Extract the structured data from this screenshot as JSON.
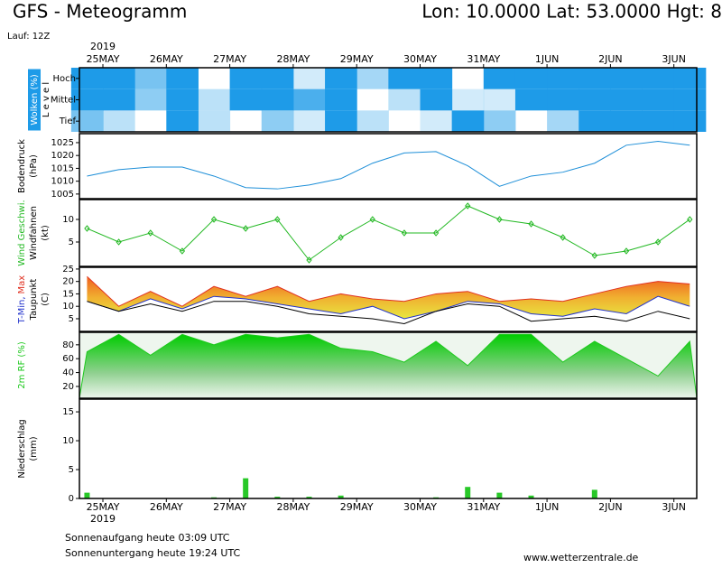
{
  "header": {
    "title": "GFS - Meteogramm",
    "location": "Lon: 10.0000 Lat: 53.0000 Hgt: 8",
    "run": "Lauf: 12Z"
  },
  "footer": {
    "sunrise": "Sonnenaufgang heute 03:09 UTC",
    "sunset": "Sonnenuntergang heute 19:24 UTC",
    "source": "www.wetterzentrale.de"
  },
  "chart_data": [
    {
      "type": "heatmap",
      "y_label": "Wolken (%)",
      "y_label2": "L e v e l",
      "year": "2019",
      "rows": [
        "Hoch",
        "Mittel",
        "Tief"
      ],
      "color": "#1e9be8",
      "x": [
        24.75,
        25.25,
        25.75,
        26.25,
        26.75,
        27.25,
        27.75,
        28.25,
        28.75,
        29.25,
        29.75,
        30.25,
        30.75,
        31.25,
        31.75,
        32.25,
        32.75,
        33.25,
        33.75,
        34.25
      ],
      "xlim": [
        24.63,
        34.36
      ],
      "xticks": [
        {
          "value": 25,
          "label": "25MAY"
        },
        {
          "value": 26,
          "label": "26MAY"
        },
        {
          "value": 27,
          "label": "27MAY"
        },
        {
          "value": 28,
          "label": "28MAY"
        },
        {
          "value": 29,
          "label": "29MAY"
        },
        {
          "value": 30,
          "label": "30MAY"
        },
        {
          "value": 31,
          "label": "31MAY"
        },
        {
          "value": 32,
          "label": "1JUN"
        },
        {
          "value": 33,
          "label": "2JUN"
        },
        {
          "value": 34,
          "label": "3JUN"
        }
      ],
      "values": [
        [
          100,
          100,
          60,
          100,
          0,
          100,
          100,
          20,
          100,
          40,
          100,
          100,
          0,
          100,
          100,
          100,
          100,
          100,
          100,
          100
        ],
        [
          100,
          100,
          50,
          100,
          30,
          100,
          100,
          80,
          100,
          0,
          30,
          100,
          20,
          20,
          100,
          100,
          100,
          100,
          100,
          100
        ],
        [
          60,
          30,
          0,
          100,
          30,
          0,
          50,
          20,
          100,
          30,
          0,
          20,
          100,
          50,
          0,
          40,
          100,
          100,
          100,
          100
        ]
      ]
    },
    {
      "type": "line",
      "y_label": "Bodendruck",
      "y_unit": "(hPa)",
      "color": "#1e8fd8",
      "x": [
        24.75,
        25.25,
        25.75,
        26.25,
        26.75,
        27.25,
        27.75,
        28.25,
        28.75,
        29.25,
        29.75,
        30.25,
        30.75,
        31.25,
        31.75,
        32.25,
        32.75,
        33.25,
        33.75,
        34.25
      ],
      "xlim": [
        24.63,
        34.36
      ],
      "ylim": [
        1003.2,
        1028.5
      ],
      "yticks": [
        1005,
        1010,
        1015,
        1020,
        1025
      ],
      "values": [
        1012,
        1014.5,
        1015.5,
        1015.5,
        1012,
        1007.5,
        1007,
        1008.5,
        1011,
        1017,
        1021,
        1021.5,
        1016,
        1008,
        1012,
        1013.5,
        1017,
        1024,
        1025.5,
        1024
      ]
    },
    {
      "type": "line",
      "y_label": "Wind Geschwi.",
      "y_label2": "Windfahnen",
      "y_unit": "(kt)",
      "color": "#22b822",
      "markers": true,
      "x": [
        24.75,
        25.25,
        25.75,
        26.25,
        26.75,
        27.25,
        27.75,
        28.25,
        28.75,
        29.25,
        29.75,
        30.25,
        30.75,
        31.25,
        31.75,
        32.25,
        32.75,
        33.25,
        33.75,
        34.25
      ],
      "xlim": [
        24.63,
        34.36
      ],
      "ylim": [
        -0.4,
        14.4
      ],
      "yticks": [
        5,
        10
      ],
      "values": [
        8,
        5,
        7,
        3,
        10,
        8,
        10,
        1,
        6,
        10,
        7,
        7,
        13,
        10,
        9,
        6,
        2,
        3,
        5,
        10
      ]
    },
    {
      "type": "line",
      "y_unit": "(C)",
      "fill_between": true,
      "x": [
        24.75,
        25.25,
        25.75,
        26.25,
        26.75,
        27.25,
        27.75,
        28.25,
        28.75,
        29.25,
        29.75,
        30.25,
        30.75,
        31.25,
        31.75,
        32.25,
        32.75,
        33.25,
        33.75,
        34.25
      ],
      "xlim": [
        24.63,
        34.36
      ],
      "ylim": [
        -0.1,
        25.7
      ],
      "yticks": [
        5,
        10,
        15,
        20,
        25
      ],
      "series": [
        {
          "name": "T-Min,",
          "color": "#2233cc",
          "values": [
            12,
            8,
            13,
            9,
            14,
            13,
            11,
            9,
            7,
            10,
            5,
            8,
            12,
            11,
            7,
            6,
            9,
            7,
            14,
            10
          ]
        },
        {
          "name": "Max",
          "color": "#e03020",
          "values": [
            22,
            10,
            16,
            10,
            18,
            14,
            18,
            12,
            15,
            13,
            12,
            15,
            16,
            12,
            13,
            12,
            15,
            18,
            20,
            19
          ]
        },
        {
          "name": "Taupunkt",
          "color": "#000000",
          "values": [
            12,
            8,
            11,
            8,
            12,
            12,
            10,
            7,
            6,
            5,
            3,
            8,
            11,
            10,
            4,
            5,
            6,
            4,
            8,
            5
          ]
        }
      ]
    },
    {
      "type": "area",
      "y_label": "2m RF (%)",
      "color": "#1ec81e",
      "x": [
        24.75,
        25.25,
        25.75,
        26.25,
        26.75,
        27.25,
        27.75,
        28.25,
        28.75,
        29.25,
        29.75,
        30.25,
        30.75,
        31.25,
        31.75,
        32.25,
        32.75,
        33.25,
        33.75,
        34.25
      ],
      "xlim": [
        24.63,
        34.36
      ],
      "ylim": [
        3,
        98
      ],
      "yticks": [
        20,
        40,
        60,
        80
      ],
      "values": [
        70,
        95,
        65,
        95,
        80,
        95,
        90,
        95,
        75,
        70,
        55,
        85,
        50,
        95,
        95,
        55,
        85,
        60,
        35,
        85
      ]
    },
    {
      "type": "bar",
      "y_label": "Niederschlag",
      "y_unit": "(mm)",
      "color": "#28c828",
      "year": "2019",
      "x": [
        24.75,
        25.25,
        25.75,
        26.25,
        26.75,
        27.25,
        27.75,
        28.25,
        28.75,
        29.25,
        29.75,
        30.25,
        30.75,
        31.25,
        31.75,
        32.25,
        32.75,
        33.25,
        33.75,
        34.25
      ],
      "xlim": [
        24.63,
        34.36
      ],
      "ylim": [
        0,
        17.2
      ],
      "yticks": [
        0,
        5,
        10,
        15
      ],
      "xticks": [
        {
          "value": 25,
          "label": "25MAY"
        },
        {
          "value": 26,
          "label": "26MAY"
        },
        {
          "value": 27,
          "label": "27MAY"
        },
        {
          "value": 28,
          "label": "28MAY"
        },
        {
          "value": 29,
          "label": "29MAY"
        },
        {
          "value": 30,
          "label": "30MAY"
        },
        {
          "value": 31,
          "label": "31MAY"
        },
        {
          "value": 32,
          "label": "1JUN"
        },
        {
          "value": 33,
          "label": "2JUN"
        },
        {
          "value": 34,
          "label": "3JUN"
        }
      ],
      "values": [
        1,
        0,
        0,
        0,
        0.2,
        3.5,
        0.3,
        0.3,
        0.5,
        0,
        0,
        0.2,
        2,
        1,
        0.5,
        0,
        1.5,
        0,
        0,
        0
      ]
    }
  ]
}
